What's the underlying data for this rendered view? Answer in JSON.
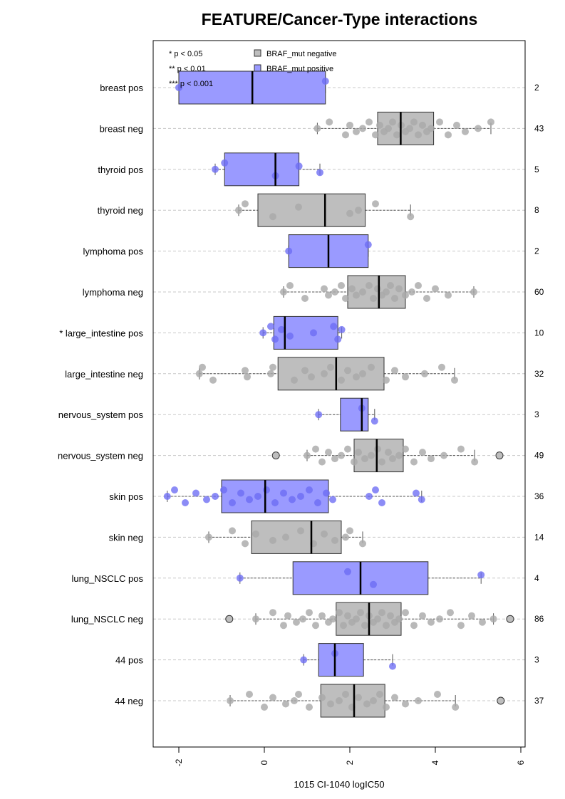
{
  "chart_data": {
    "type": "box",
    "title": "FEATURE/Cancer-Type interactions",
    "xlabel": "1015 CI-1040 logIC50",
    "xlim": [
      -2.6,
      6.1
    ],
    "xticks": [
      "-2",
      "0",
      "2",
      "4",
      "6"
    ],
    "xtick_values": [
      -2,
      0,
      2,
      4,
      6
    ],
    "orientation": "horizontal",
    "grid": "horizontal dashed",
    "legend_position": "top-left",
    "significance_notes": [
      "* p < 0.05",
      "** p < 0.01",
      "*** p < 0.001"
    ],
    "legend": [
      {
        "label": "BRAF_mut negative",
        "color": "#bebebe"
      },
      {
        "label": "BRAF_mut positive",
        "color": "#9a9aff"
      }
    ],
    "colors": {
      "pos_box": "#9a9aff",
      "pos_point": "#6b6bf4",
      "neg_box": "#bebebe",
      "neg_point": "#a9a9a9",
      "grid": "#c8c8c8",
      "whisker": "#555555"
    },
    "groups": [
      {
        "label": "breast pos",
        "n": "2",
        "kind": "pos",
        "stats": {
          "min": -2.0,
          "q1": -2.0,
          "median": -0.28,
          "q3": 1.43,
          "max": 1.43
        },
        "outliers": [],
        "points": [
          -2.0,
          1.43
        ]
      },
      {
        "label": "breast neg",
        "n": "43",
        "kind": "neg",
        "stats": {
          "min": 1.24,
          "q1": 2.65,
          "median": 3.19,
          "q3": 3.96,
          "max": 5.3
        },
        "outliers": [],
        "points": [
          1.24,
          1.52,
          1.9,
          2.0,
          2.15,
          2.3,
          2.45,
          2.6,
          2.7,
          2.8,
          2.9,
          3.0,
          3.1,
          3.2,
          3.3,
          3.4,
          3.5,
          3.6,
          3.7,
          3.8,
          3.9,
          4.1,
          4.3,
          4.5,
          4.7,
          5.0,
          5.3
        ]
      },
      {
        "label": "thyroid pos",
        "n": "5",
        "kind": "pos",
        "stats": {
          "min": -1.15,
          "q1": -0.93,
          "median": 0.26,
          "q3": 0.81,
          "max": 1.3
        },
        "outliers": [],
        "points": [
          -1.15,
          -0.93,
          0.26,
          0.81,
          1.3
        ]
      },
      {
        "label": "thyroid neg",
        "n": "8",
        "kind": "neg",
        "stats": {
          "min": -0.6,
          "q1": -0.15,
          "median": 1.42,
          "q3": 2.36,
          "max": 3.42
        },
        "outliers": [],
        "points": [
          -0.6,
          -0.45,
          0.2,
          0.8,
          2.0,
          2.2,
          2.6,
          3.42
        ]
      },
      {
        "label": "lymphoma pos",
        "n": "2",
        "kind": "pos",
        "stats": {
          "min": 0.57,
          "q1": 0.57,
          "median": 1.5,
          "q3": 2.43,
          "max": 2.43
        },
        "outliers": [],
        "points": [
          0.57,
          2.43
        ]
      },
      {
        "label": "lymphoma neg",
        "n": "60",
        "kind": "neg",
        "stats": {
          "min": 0.45,
          "q1": 1.95,
          "median": 2.68,
          "q3": 3.3,
          "max": 4.9
        },
        "outliers": [],
        "points": [
          0.45,
          0.6,
          0.95,
          1.4,
          1.5,
          1.65,
          1.8,
          1.9,
          2.05,
          2.15,
          2.3,
          2.45,
          2.55,
          2.65,
          2.75,
          2.85,
          2.95,
          3.05,
          3.15,
          3.3,
          3.45,
          3.6,
          3.8,
          4.0,
          4.3,
          4.9
        ]
      },
      {
        "label": "* large_intestine pos",
        "n": "10",
        "kind": "pos",
        "stats": {
          "min": -0.03,
          "q1": 0.22,
          "median": 0.48,
          "q3": 1.72,
          "max": 1.81
        },
        "outliers": [],
        "points": [
          -0.03,
          0.15,
          0.25,
          0.4,
          0.6,
          1.15,
          1.62,
          1.72,
          1.81
        ]
      },
      {
        "label": "large_intestine neg",
        "n": "32",
        "kind": "neg",
        "stats": {
          "min": -1.52,
          "q1": 0.32,
          "median": 1.68,
          "q3": 2.8,
          "max": 4.45
        },
        "outliers": [],
        "points": [
          -1.52,
          -1.45,
          -1.2,
          -0.45,
          -0.4,
          0.15,
          0.2,
          0.7,
          0.95,
          1.1,
          1.4,
          1.55,
          1.8,
          1.95,
          2.15,
          2.3,
          2.5,
          2.85,
          3.05,
          3.3,
          3.75,
          4.15,
          4.45
        ]
      },
      {
        "label": "nervous_system pos",
        "n": "3",
        "kind": "pos",
        "stats": {
          "min": 1.27,
          "q1": 1.78,
          "median": 2.28,
          "q3": 2.43,
          "max": 2.58
        },
        "outliers": [],
        "points": [
          1.27,
          2.28,
          2.58
        ]
      },
      {
        "label": "nervous_system neg",
        "n": "49",
        "kind": "neg",
        "stats": {
          "min": 1.0,
          "q1": 2.1,
          "median": 2.63,
          "q3": 3.25,
          "max": 4.92
        },
        "outliers": [
          0.27,
          5.5
        ],
        "points": [
          1.0,
          1.2,
          1.35,
          1.5,
          1.65,
          1.8,
          1.95,
          2.1,
          2.2,
          2.35,
          2.5,
          2.65,
          2.75,
          2.9,
          3.0,
          3.15,
          3.3,
          3.5,
          3.7,
          3.9,
          4.2,
          4.6,
          4.92
        ]
      },
      {
        "label": "skin pos",
        "n": "36",
        "kind": "pos",
        "stats": {
          "min": -2.27,
          "q1": -1.0,
          "median": 0.02,
          "q3": 1.5,
          "max": 3.68
        },
        "outliers": [],
        "points": [
          -2.27,
          -2.1,
          -1.85,
          -1.6,
          -1.35,
          -1.15,
          -0.95,
          -0.75,
          -0.55,
          -0.35,
          -0.15,
          0.05,
          0.25,
          0.45,
          0.65,
          0.85,
          1.05,
          1.25,
          1.45,
          1.6,
          2.45,
          2.6,
          2.75,
          3.55,
          3.68
        ]
      },
      {
        "label": "skin neg",
        "n": "14",
        "kind": "neg",
        "stats": {
          "min": -1.3,
          "q1": -0.3,
          "median": 1.1,
          "q3": 1.8,
          "max": 2.3
        },
        "outliers": [],
        "points": [
          -1.3,
          -0.75,
          -0.45,
          -0.2,
          0.2,
          0.5,
          0.85,
          1.15,
          1.4,
          1.65,
          1.9,
          2.0,
          2.3
        ]
      },
      {
        "label": "lung_NSCLC pos",
        "n": "4",
        "kind": "pos",
        "stats": {
          "min": -0.57,
          "q1": 0.67,
          "median": 2.25,
          "q3": 3.83,
          "max": 5.07
        },
        "outliers": [],
        "points": [
          -0.57,
          1.95,
          2.55,
          5.07
        ]
      },
      {
        "label": "lung_NSCLC neg",
        "n": "86",
        "kind": "neg",
        "stats": {
          "min": -0.2,
          "q1": 1.68,
          "median": 2.45,
          "q3": 3.2,
          "max": 5.36
        },
        "outliers": [
          -0.82,
          5.75
        ],
        "points": [
          -0.2,
          0.2,
          0.45,
          0.55,
          0.75,
          0.9,
          1.05,
          1.2,
          1.35,
          1.5,
          1.6,
          1.75,
          1.85,
          1.95,
          2.05,
          2.15,
          2.25,
          2.35,
          2.45,
          2.55,
          2.65,
          2.75,
          2.85,
          2.95,
          3.05,
          3.15,
          3.3,
          3.5,
          3.7,
          3.9,
          4.1,
          4.35,
          4.6,
          4.85,
          5.1,
          5.36
        ]
      },
      {
        "label": "44 pos",
        "n": "3",
        "kind": "pos",
        "stats": {
          "min": 0.92,
          "q1": 1.27,
          "median": 1.65,
          "q3": 2.32,
          "max": 3.0
        },
        "outliers": [],
        "points": [
          0.92,
          1.65,
          3.0
        ]
      },
      {
        "label": "44 neg",
        "n": "37",
        "kind": "neg",
        "stats": {
          "min": -0.8,
          "q1": 1.32,
          "median": 2.1,
          "q3": 2.82,
          "max": 4.47
        },
        "outliers": [
          5.53
        ],
        "points": [
          -0.8,
          -0.35,
          0.0,
          0.2,
          0.5,
          0.7,
          0.8,
          1.05,
          1.35,
          1.55,
          1.75,
          1.9,
          2.05,
          2.2,
          2.4,
          2.55,
          2.7,
          2.85,
          3.05,
          3.3,
          3.6,
          4.05,
          4.47
        ]
      }
    ]
  }
}
